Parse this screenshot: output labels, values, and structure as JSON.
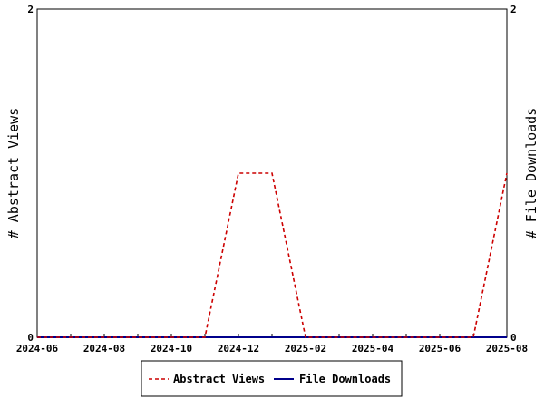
{
  "chart_data": {
    "type": "line",
    "x": [
      "2024-06",
      "2024-07",
      "2024-08",
      "2024-09",
      "2024-10",
      "2024-11",
      "2024-12",
      "2025-01",
      "2025-02",
      "2025-03",
      "2025-04",
      "2025-05",
      "2025-06",
      "2025-07",
      "2025-08"
    ],
    "x_ticks": [
      "2024-06",
      "2024-08",
      "2024-10",
      "2024-12",
      "2025-02",
      "2025-04",
      "2025-06",
      "2025-08"
    ],
    "series": [
      {
        "name": "Abstract Views",
        "axis": "left",
        "color": "#cc0000",
        "dash": "dashed",
        "values": [
          0,
          0,
          0,
          0,
          0,
          0,
          1,
          1,
          0,
          0,
          0,
          0,
          0,
          0,
          1
        ]
      },
      {
        "name": "File Downloads",
        "axis": "right",
        "color": "#00008b",
        "dash": "solid",
        "values": [
          0,
          0,
          0,
          0,
          0,
          0,
          0,
          0,
          0,
          0,
          0,
          0,
          0,
          0,
          0
        ]
      }
    ],
    "ylabel_left": "# Abstract Views",
    "ylabel_right": "# File Downloads",
    "ylim_left": [
      0,
      2
    ],
    "ylim_right": [
      0,
      2
    ],
    "y_ticks_left": [
      "0",
      "2"
    ],
    "y_ticks_right": [
      "0",
      "2"
    ],
    "grid": false,
    "legend_position": "bottom-center"
  }
}
